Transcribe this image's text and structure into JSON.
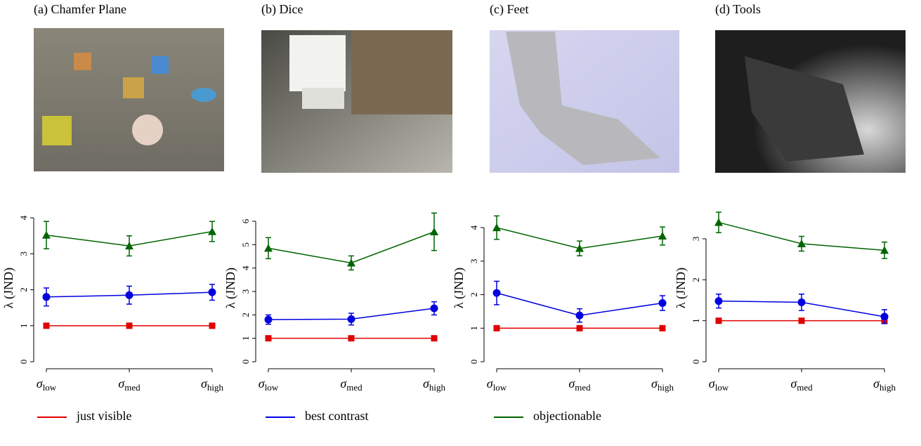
{
  "chart_data": [
    {
      "type": "line",
      "title": "(a) Chamfer Plane",
      "y_label": "λ (JND)",
      "categories": [
        "σlow",
        "σmed",
        "σhigh"
      ],
      "ylim": [
        0,
        4.1
      ],
      "yticks": [
        0,
        1,
        2,
        3,
        4
      ],
      "series": [
        {
          "name": "just visible",
          "color": "#e00000",
          "marker": "square",
          "values": [
            1,
            1,
            1
          ],
          "errors": [
            0,
            0,
            0
          ]
        },
        {
          "name": "best contrast",
          "color": "#0000e0",
          "marker": "circle",
          "values": [
            1.8,
            1.85,
            1.93
          ],
          "errors": [
            0.25,
            0.25,
            0.22
          ]
        },
        {
          "name": "objectionable",
          "color": "#006400",
          "marker": "triangle",
          "values": [
            3.52,
            3.22,
            3.62
          ],
          "errors": [
            0.38,
            0.28,
            0.28
          ]
        }
      ]
    },
    {
      "type": "line",
      "title": "(b) Dice",
      "y_label": "λ (JND)",
      "categories": [
        "σlow",
        "σmed",
        "σhigh"
      ],
      "ylim": [
        0,
        6.3
      ],
      "yticks": [
        0,
        1,
        2,
        3,
        4,
        5,
        6
      ],
      "series": [
        {
          "color": "#e00000",
          "marker": "square",
          "values": [
            1,
            1,
            1
          ],
          "errors": [
            0,
            0,
            0
          ]
        },
        {
          "color": "#0000e0",
          "marker": "circle",
          "values": [
            1.8,
            1.82,
            2.28
          ],
          "errors": [
            0.2,
            0.25,
            0.28
          ]
        },
        {
          "color": "#006400",
          "marker": "triangle",
          "values": [
            4.85,
            4.22,
            5.55
          ],
          "errors": [
            0.45,
            0.3,
            0.8
          ]
        }
      ]
    },
    {
      "type": "line",
      "title": "(c) Feet",
      "y_label": "λ (JND)",
      "categories": [
        "σlow",
        "σmed",
        "σhigh"
      ],
      "ylim": [
        0,
        4.4
      ],
      "yticks": [
        0,
        1,
        2,
        3,
        4
      ],
      "series": [
        {
          "color": "#e00000",
          "marker": "square",
          "values": [
            1,
            1,
            1
          ],
          "errors": [
            0,
            0,
            0
          ]
        },
        {
          "color": "#0000e0",
          "marker": "circle",
          "values": [
            2.05,
            1.38,
            1.75
          ],
          "errors": [
            0.35,
            0.2,
            0.22
          ]
        },
        {
          "color": "#006400",
          "marker": "triangle",
          "values": [
            4.0,
            3.38,
            3.75
          ],
          "errors": [
            0.35,
            0.22,
            0.27
          ]
        }
      ]
    },
    {
      "type": "line",
      "title": "(d) Tools",
      "y_label": "λ (JND)",
      "categories": [
        "σlow",
        "σmed",
        "σhigh"
      ],
      "ylim": [
        0,
        3.6
      ],
      "yticks": [
        0,
        1,
        2,
        3
      ],
      "series": [
        {
          "color": "#e00000",
          "marker": "square",
          "values": [
            1,
            1,
            1
          ],
          "errors": [
            0,
            0,
            0
          ]
        },
        {
          "color": "#0000e0",
          "marker": "circle",
          "values": [
            1.48,
            1.45,
            1.1
          ],
          "errors": [
            0.17,
            0.2,
            0.17
          ]
        },
        {
          "color": "#006400",
          "marker": "triangle",
          "values": [
            3.4,
            2.88,
            2.72
          ],
          "errors": [
            0.25,
            0.18,
            0.2
          ]
        }
      ]
    }
  ]
}
